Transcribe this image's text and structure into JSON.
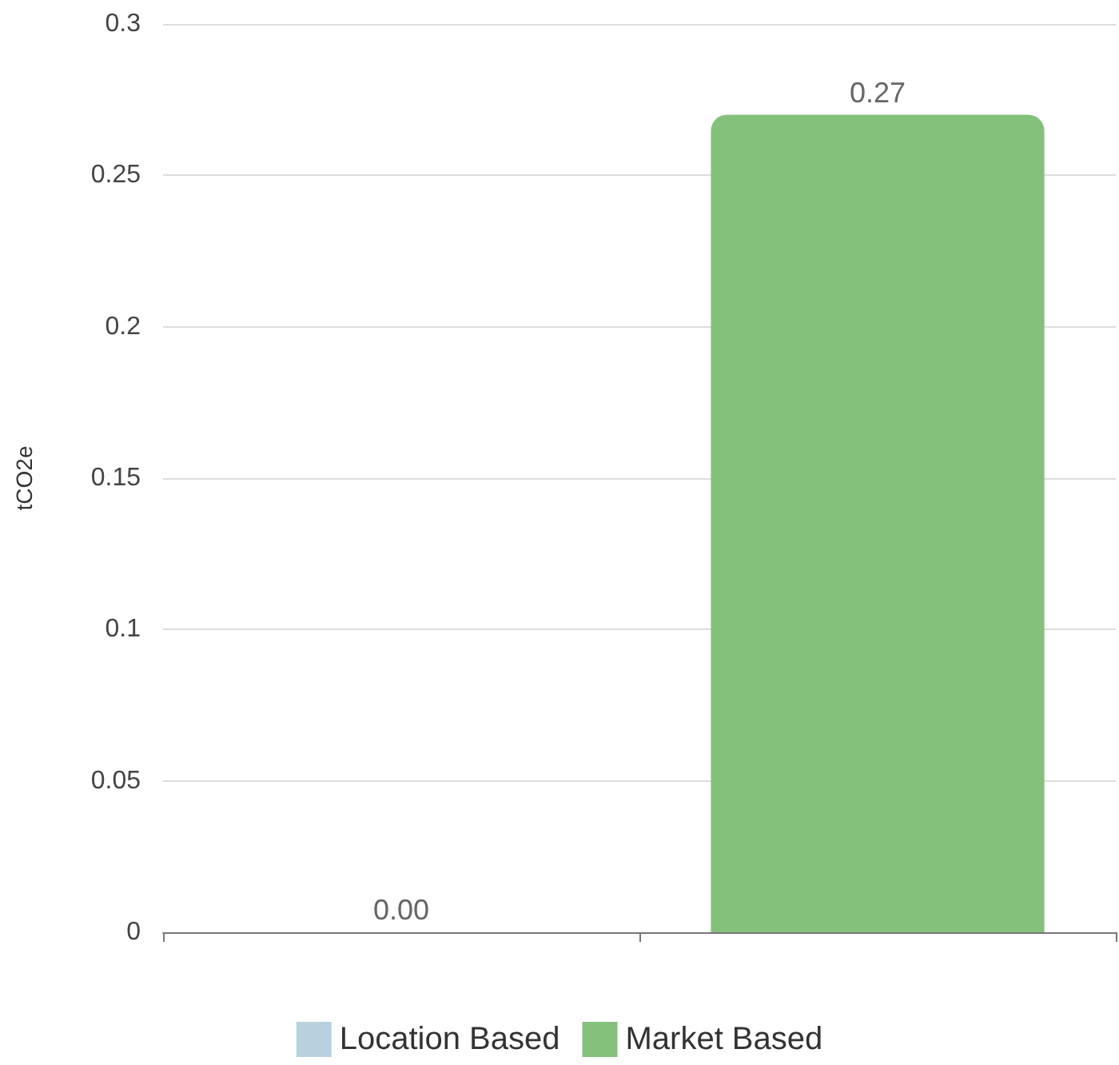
{
  "chart_data": {
    "type": "bar",
    "ylabel": "tCO2e",
    "categories": [
      null,
      null
    ],
    "series": [
      {
        "name": "Location Based",
        "color": "#b7d1de",
        "values": [
          0,
          null
        ],
        "value_labels": [
          "0.00",
          null
        ]
      },
      {
        "name": "Market Based",
        "color": "#84c17b",
        "values": [
          null,
          0.27
        ],
        "value_labels": [
          null,
          "0.27"
        ]
      }
    ],
    "ylim": [
      0,
      0.3
    ],
    "yticks": [
      0,
      0.05,
      0.1,
      0.15,
      0.2,
      0.25,
      0.3
    ],
    "grid": "y",
    "legend": "bottom"
  }
}
